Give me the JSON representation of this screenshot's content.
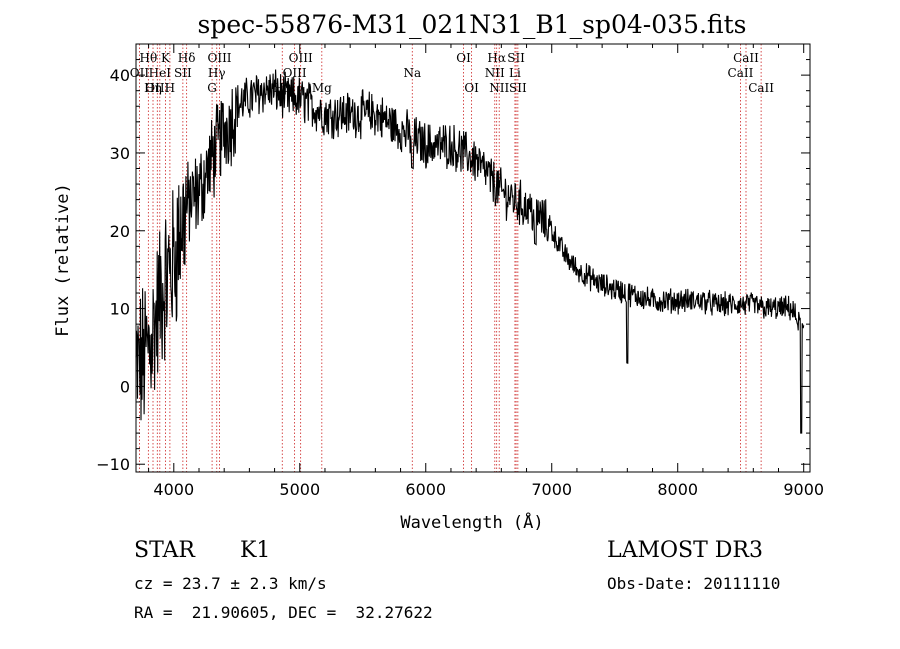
{
  "chart_data": {
    "type": "line",
    "title": "spec-55876-M31_021N31_B1_sp04-035.fits",
    "xlabel": "Wavelength (Å)",
    "ylabel": "Flux (relative)",
    "xlim": [
      3700,
      9050
    ],
    "ylim": [
      -11,
      44
    ],
    "x_ticks": [
      4000,
      5000,
      6000,
      7000,
      8000,
      9000
    ],
    "y_ticks": [
      -10,
      0,
      10,
      20,
      30,
      40
    ],
    "x_tick_labels": [
      "4000",
      "5000",
      "6000",
      "7000",
      "8000",
      "9000"
    ],
    "y_tick_labels": [
      "−10",
      "0",
      "10",
      "20",
      "30",
      "40"
    ],
    "series": [
      {
        "name": "flux",
        "x": [
          3700,
          3750,
          3800,
          3850,
          3900,
          3950,
          4000,
          4050,
          4100,
          4150,
          4200,
          4250,
          4300,
          4350,
          4400,
          4450,
          4500,
          4600,
          4700,
          4800,
          4900,
          5000,
          5100,
          5200,
          5300,
          5400,
          5500,
          5600,
          5700,
          5800,
          5900,
          6000,
          6100,
          6200,
          6300,
          6400,
          6500,
          6600,
          6700,
          6800,
          6900,
          7000,
          7100,
          7200,
          7300,
          7400,
          7500,
          7600,
          7700,
          7800,
          7900,
          8000,
          8100,
          8200,
          8300,
          8400,
          8500,
          8600,
          8700,
          8800,
          8900,
          9000
        ],
        "y": [
          2,
          3,
          5,
          8,
          12,
          14,
          16,
          20,
          23,
          24,
          25,
          27,
          29,
          31,
          33,
          34,
          36,
          37,
          38,
          38,
          37,
          37,
          36,
          35,
          35,
          35,
          35,
          35,
          34,
          33,
          32,
          31,
          31,
          31,
          30,
          29,
          27,
          25,
          24,
          23,
          22,
          20,
          17,
          15,
          14,
          13,
          12.5,
          12,
          11.5,
          11,
          11,
          11,
          11,
          11,
          10.5,
          10.5,
          10.5,
          10.5,
          10,
          10,
          10,
          7
        ]
      }
    ],
    "line_markers": [
      {
        "label": "Hθ",
        "x": 3798,
        "row": 0
      },
      {
        "label": "K",
        "x": 3934,
        "row": 0
      },
      {
        "label": "Hδ",
        "x": 4102,
        "row": 0
      },
      {
        "label": "OII",
        "x": 3727,
        "row": 1
      },
      {
        "label": "HeI",
        "x": 3889,
        "row": 1
      },
      {
        "label": "SII",
        "x": 4072,
        "row": 1
      },
      {
        "label": "OIII",
        "x": 3869,
        "row": 2
      },
      {
        "label": "Hη",
        "x": 3835,
        "row": 2
      },
      {
        "label": "H",
        "x": 3969,
        "row": 2
      },
      {
        "label": "OIII",
        "x": 4363,
        "row": 0
      },
      {
        "label": "Hγ",
        "x": 4341,
        "row": 1
      },
      {
        "label": "G",
        "x": 4304,
        "row": 2
      },
      {
        "label": "OIII",
        "x": 5007,
        "row": 0
      },
      {
        "label": "OIII",
        "x": 4959,
        "row": 1
      },
      {
        "label": "Hβ",
        "x": 4861,
        "row": 2
      },
      {
        "label": "Mg",
        "x": 5175,
        "row": 2
      },
      {
        "label": "Na",
        "x": 5893,
        "row": 1
      },
      {
        "label": "OI",
        "x": 6300,
        "row": 0
      },
      {
        "label": "OI",
        "x": 6364,
        "row": 2
      },
      {
        "label": "Hα",
        "x": 6563,
        "row": 0
      },
      {
        "label": "SII",
        "x": 6717,
        "row": 0
      },
      {
        "label": "NII",
        "x": 6548,
        "row": 1
      },
      {
        "label": "Li",
        "x": 6708,
        "row": 1
      },
      {
        "label": "NII",
        "x": 6583,
        "row": 2
      },
      {
        "label": "SII",
        "x": 6731,
        "row": 2
      },
      {
        "label": "CaII",
        "x": 8542,
        "row": 0
      },
      {
        "label": "CaII",
        "x": 8498,
        "row": 1
      },
      {
        "label": "CaII",
        "x": 8662,
        "row": 2
      }
    ]
  },
  "info": {
    "object_class": "STAR",
    "subclass": "K1",
    "survey": "LAMOST DR3",
    "cz": "cz = 23.7 ± 2.3 km/s",
    "obs_date": "Obs-Date: 20111110",
    "coords": "RA =  21.90605, DEC =  32.27622"
  },
  "colors": {
    "line": "#000000",
    "marker": "#cc2222",
    "background": "#ffffff"
  }
}
